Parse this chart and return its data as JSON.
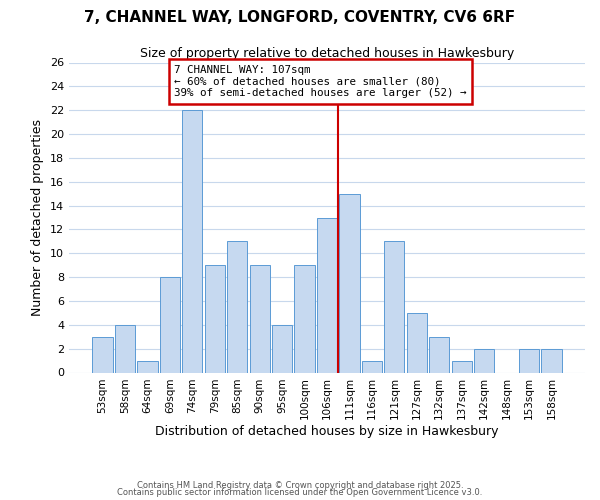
{
  "title": "7, CHANNEL WAY, LONGFORD, COVENTRY, CV6 6RF",
  "subtitle": "Size of property relative to detached houses in Hawkesbury",
  "xlabel": "Distribution of detached houses by size in Hawkesbury",
  "ylabel": "Number of detached properties",
  "categories": [
    "53sqm",
    "58sqm",
    "64sqm",
    "69sqm",
    "74sqm",
    "79sqm",
    "85sqm",
    "90sqm",
    "95sqm",
    "100sqm",
    "106sqm",
    "111sqm",
    "116sqm",
    "121sqm",
    "127sqm",
    "132sqm",
    "137sqm",
    "142sqm",
    "148sqm",
    "153sqm",
    "158sqm"
  ],
  "values": [
    3,
    4,
    1,
    8,
    22,
    9,
    11,
    9,
    4,
    9,
    13,
    15,
    1,
    11,
    5,
    3,
    1,
    2,
    0,
    2,
    2
  ],
  "bar_color": "#c6d9f0",
  "bar_edge_color": "#5b9bd5",
  "vline_color": "#cc0000",
  "annotation_title": "7 CHANNEL WAY: 107sqm",
  "annotation_line1": "← 60% of detached houses are smaller (80)",
  "annotation_line2": "39% of semi-detached houses are larger (52) →",
  "annotation_box_color": "#ffffff",
  "annotation_box_edge": "#cc0000",
  "ylim": [
    0,
    26
  ],
  "yticks": [
    0,
    2,
    4,
    6,
    8,
    10,
    12,
    14,
    16,
    18,
    20,
    22,
    24,
    26
  ],
  "footer1": "Contains HM Land Registry data © Crown copyright and database right 2025.",
  "footer2": "Contains public sector information licensed under the Open Government Licence v3.0.",
  "bg_color": "#ffffff",
  "grid_color": "#c8d8ec"
}
